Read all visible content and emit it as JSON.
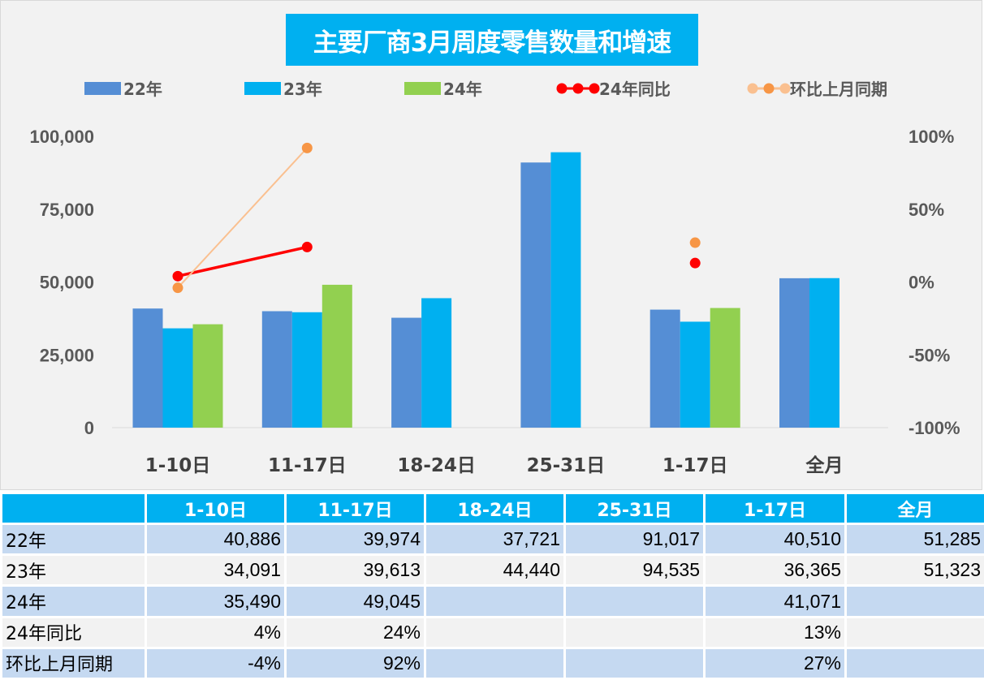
{
  "chart_data": {
    "type": "bar",
    "title": "主要厂商3月周度零售数量和增速",
    "categories": [
      "1-10日",
      "11-17日",
      "18-24日",
      "25-31日",
      "1-17日",
      "全月"
    ],
    "series": [
      {
        "name": "22年",
        "kind": "bar",
        "axis": "left",
        "color": "#558ED5",
        "values": [
          40886,
          39974,
          37721,
          91017,
          40510,
          51285
        ]
      },
      {
        "name": "23年",
        "kind": "bar",
        "axis": "left",
        "color": "#00B0F0",
        "values": [
          34091,
          39613,
          44440,
          94535,
          36365,
          51323
        ]
      },
      {
        "name": "24年",
        "kind": "bar",
        "axis": "left",
        "color": "#92D050",
        "values": [
          35490,
          49045,
          null,
          null,
          41071,
          null
        ]
      },
      {
        "name": "24年同比",
        "kind": "line",
        "axis": "right",
        "color": "#FF0000",
        "values": [
          0.04,
          0.24,
          null,
          null,
          0.13,
          null
        ]
      },
      {
        "name": "环比上月同期",
        "kind": "line",
        "axis": "right",
        "color": "#F79646",
        "line_color": "#FAC090",
        "values": [
          -0.04,
          0.92,
          null,
          null,
          0.27,
          null
        ]
      }
    ],
    "left_axis": {
      "range": [
        0,
        100000
      ],
      "ticks": [
        "0",
        "25,000",
        "50,000",
        "75,000",
        "100,000"
      ]
    },
    "right_axis": {
      "range": [
        -1,
        1
      ],
      "ticks": [
        "-100%",
        "-50%",
        "0%",
        "50%",
        "100%"
      ]
    },
    "legend_position": "top",
    "grid": false
  },
  "table": {
    "headers": [
      "",
      "1-10日",
      "11-17日",
      "18-24日",
      "25-31日",
      "1-17日",
      "全月"
    ],
    "rows": [
      [
        "22年",
        "40,886",
        "39,974",
        "37,721",
        "91,017",
        "40,510",
        "51,285"
      ],
      [
        "23年",
        "34,091",
        "39,613",
        "44,440",
        "94,535",
        "36,365",
        "51,323"
      ],
      [
        "24年",
        "35,490",
        "49,045",
        "",
        "",
        "41,071",
        ""
      ],
      [
        "24年同比",
        "4%",
        "24%",
        "",
        "",
        "13%",
        ""
      ],
      [
        "环比上月同期",
        "-4%",
        "92%",
        "",
        "",
        "27%",
        ""
      ]
    ]
  }
}
